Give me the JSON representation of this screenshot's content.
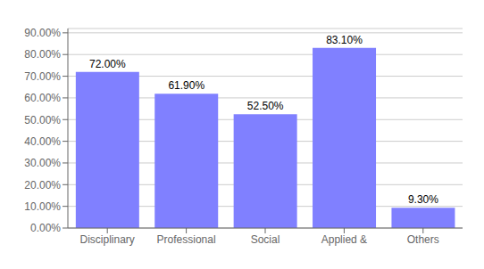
{
  "chart_data": {
    "type": "bar",
    "categories": [
      "Disciplinary",
      "Professional",
      "Social",
      "Applied &",
      "Others"
    ],
    "values": [
      72.0,
      61.9,
      52.5,
      83.1,
      9.3
    ],
    "value_labels": [
      "72.00%",
      "61.90%",
      "52.50%",
      "83.10%",
      "9.30%"
    ],
    "data_labels": true,
    "color": "#8080ff",
    "ylim": [
      0,
      92
    ],
    "yticks": [
      {
        "value": 0,
        "label": "0.00%"
      },
      {
        "value": 10,
        "label": "10.00%"
      },
      {
        "value": 20,
        "label": "20.00%"
      },
      {
        "value": 30,
        "label": "30.00%"
      },
      {
        "value": 40,
        "label": "40.00%"
      },
      {
        "value": 50,
        "label": "50.00%"
      },
      {
        "value": 60,
        "label": "60.00%"
      },
      {
        "value": 70,
        "label": "70.00%"
      },
      {
        "value": 80,
        "label": "80.00%"
      },
      {
        "value": 90,
        "label": "90.00%"
      }
    ],
    "grid": true
  }
}
